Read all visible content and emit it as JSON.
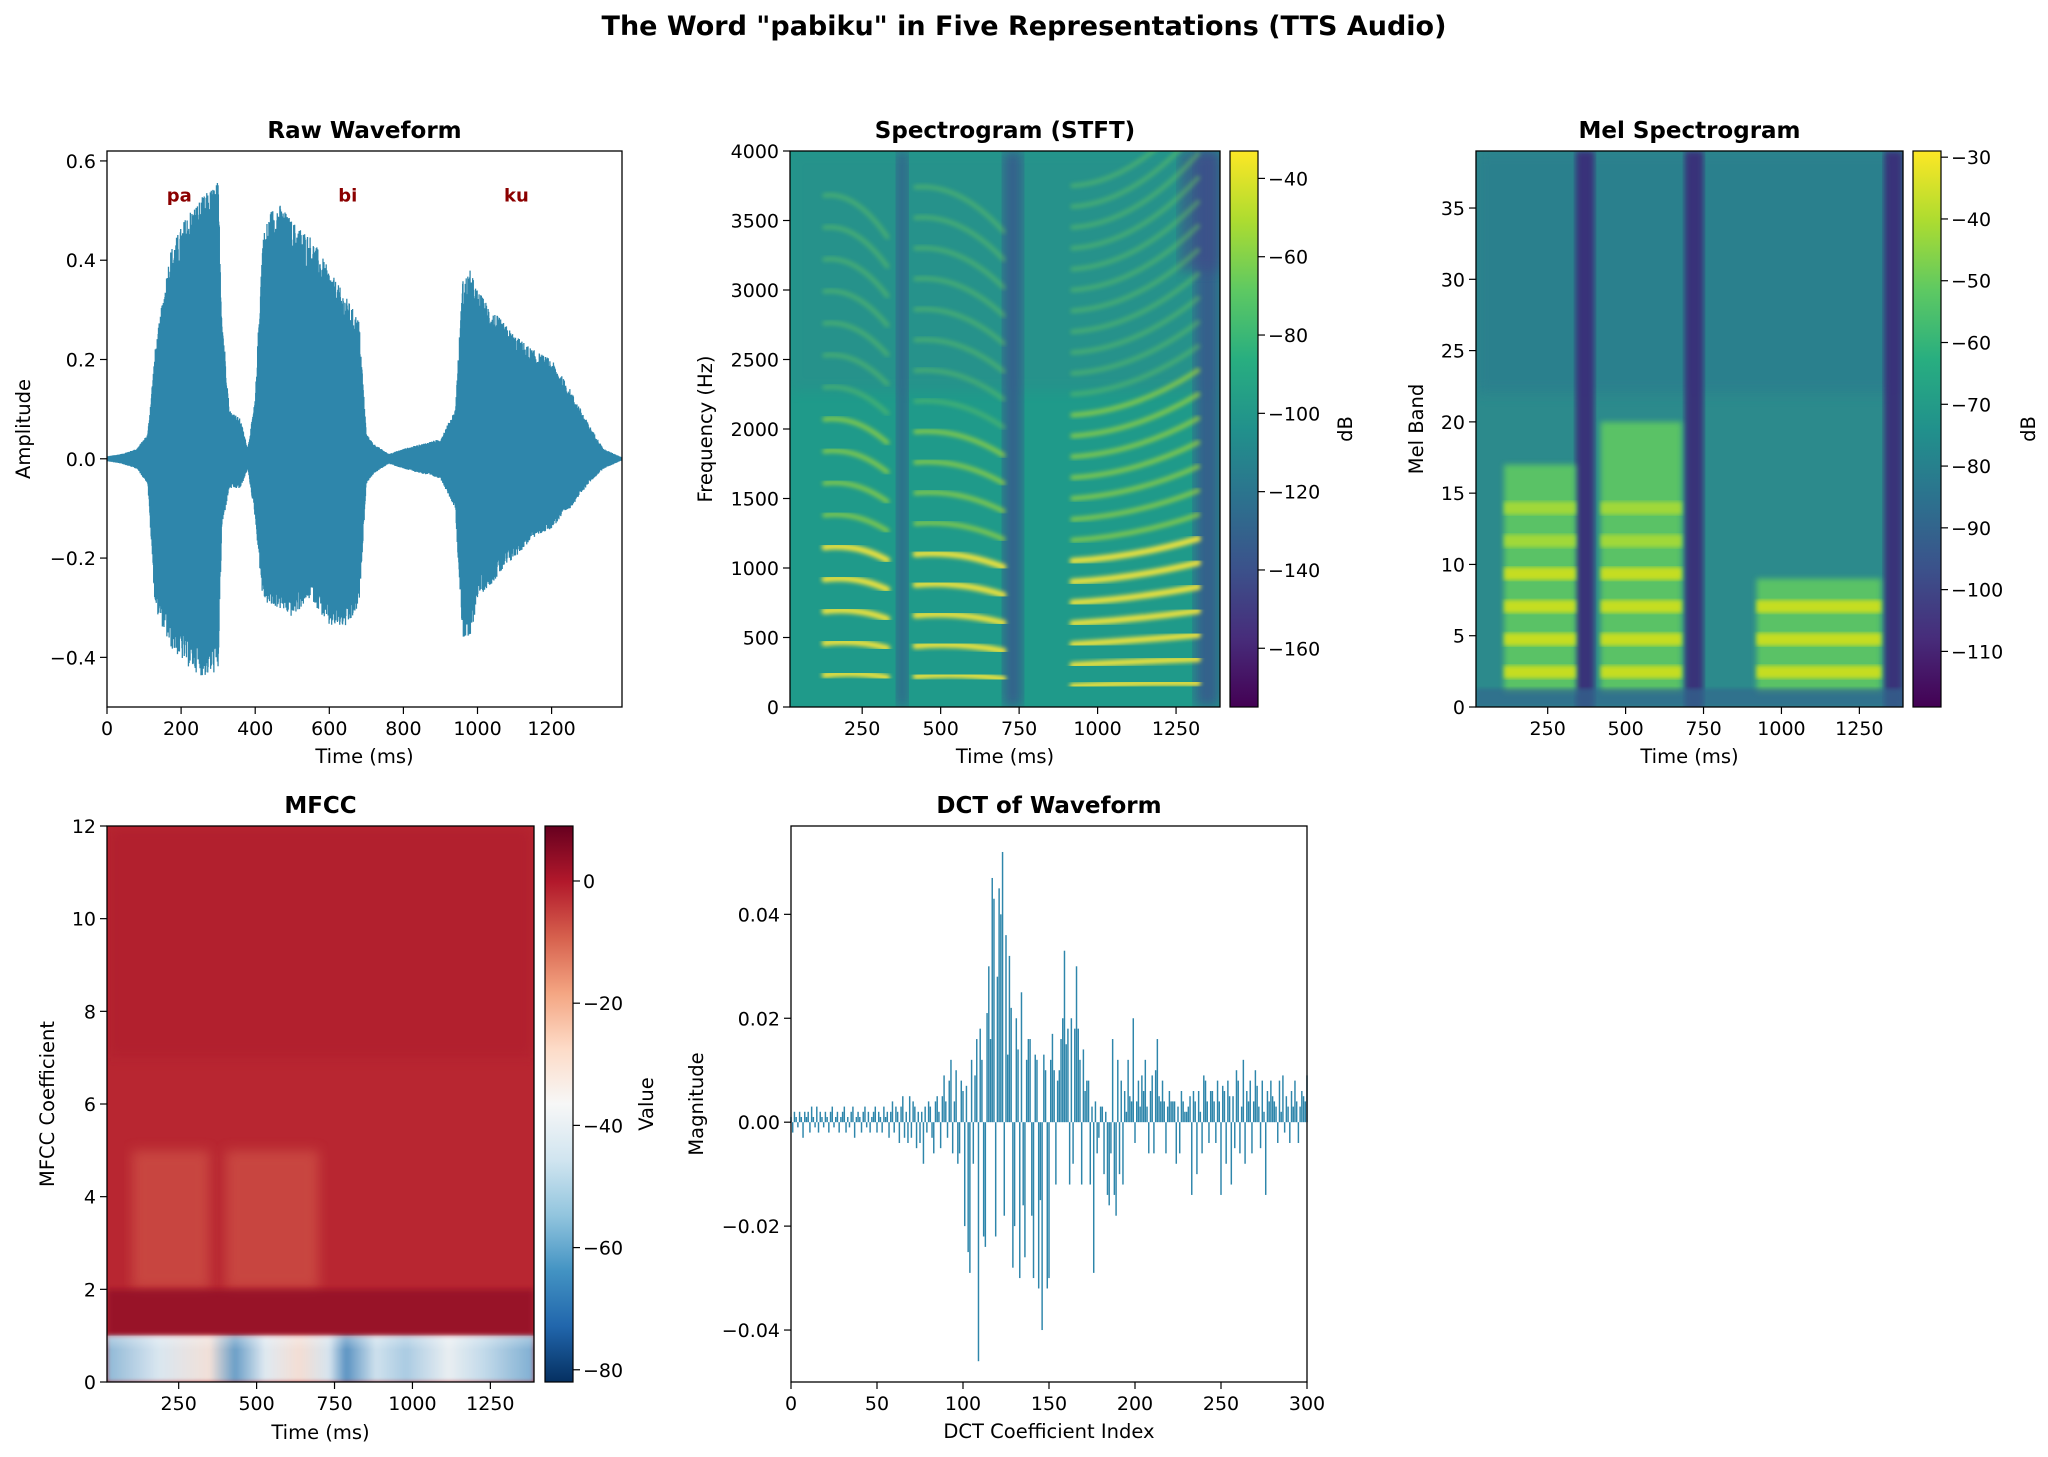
{
  "figure": {
    "title": "The Word \"pabiku\" in Five Representations (TTS Audio)"
  },
  "colors": {
    "waveform": "#2e86ab",
    "syllable_label": "#8b0000",
    "dct_bar": "#2e86ab"
  },
  "chart_data": [
    {
      "id": "waveform",
      "type": "line",
      "title": "Raw Waveform",
      "xlabel": "Time (ms)",
      "ylabel": "Amplitude",
      "xlim": [
        0,
        1390
      ],
      "ylim": [
        -0.5,
        0.62
      ],
      "xticks": [
        0,
        200,
        400,
        600,
        800,
        1000,
        1200
      ],
      "xtick_labels": [
        "0",
        "200",
        "400",
        "600",
        "800",
        "1000",
        "1200"
      ],
      "yticks": [
        -0.4,
        -0.2,
        0.0,
        0.2,
        0.4,
        0.6
      ],
      "ytick_labels": [
        "−0.4",
        "−0.2",
        "0.0",
        "0.2",
        "0.4",
        "0.6"
      ],
      "annotations": [
        {
          "text": "pa",
          "x": 240,
          "y": 0.53
        },
        {
          "text": "bi",
          "x": 695,
          "y": 0.53
        },
        {
          "text": "ku",
          "x": 1150,
          "y": 0.53
        }
      ],
      "envelope": {
        "t": [
          0,
          40,
          80,
          110,
          130,
          170,
          220,
          260,
          300,
          310,
          330,
          360,
          380,
          400,
          420,
          440,
          460,
          500,
          550,
          600,
          650,
          680,
          700,
          720,
          760,
          800,
          850,
          900,
          940,
          960,
          980,
          1000,
          1040,
          1100,
          1150,
          1200,
          1250,
          1300,
          1340,
          1390
        ],
        "upper": [
          0.005,
          0.01,
          0.02,
          0.05,
          0.22,
          0.42,
          0.5,
          0.53,
          0.56,
          0.3,
          0.1,
          0.08,
          0.02,
          0.12,
          0.45,
          0.5,
          0.52,
          0.48,
          0.45,
          0.38,
          0.32,
          0.28,
          0.05,
          0.03,
          0.01,
          0.02,
          0.03,
          0.04,
          0.1,
          0.36,
          0.38,
          0.34,
          0.3,
          0.25,
          0.22,
          0.2,
          0.14,
          0.07,
          0.02,
          0.003
        ],
        "lower": [
          -0.005,
          -0.01,
          -0.02,
          -0.05,
          -0.3,
          -0.38,
          -0.42,
          -0.44,
          -0.43,
          -0.14,
          -0.06,
          -0.06,
          -0.02,
          -0.12,
          -0.28,
          -0.3,
          -0.3,
          -0.32,
          -0.28,
          -0.34,
          -0.34,
          -0.3,
          -0.05,
          -0.03,
          -0.01,
          -0.02,
          -0.03,
          -0.04,
          -0.1,
          -0.36,
          -0.37,
          -0.28,
          -0.25,
          -0.2,
          -0.16,
          -0.14,
          -0.1,
          -0.05,
          -0.02,
          -0.003
        ]
      }
    },
    {
      "id": "stft",
      "type": "heatmap",
      "title": "Spectrogram (STFT)",
      "xlabel": "Time (ms)",
      "ylabel": "Frequency (Hz)",
      "xlim": [
        20,
        1390
      ],
      "ylim": [
        0,
        4000
      ],
      "xticks": [
        250,
        500,
        750,
        1000,
        1250
      ],
      "xtick_labels": [
        "250",
        "500",
        "750",
        "1000",
        "1250"
      ],
      "yticks": [
        0,
        500,
        1000,
        1500,
        2000,
        2500,
        3000,
        3500,
        4000
      ],
      "ytick_labels": [
        "0",
        "500",
        "1000",
        "1500",
        "2000",
        "2500",
        "3000",
        "3500",
        "4000"
      ],
      "colormap": "viridis",
      "colorbar": {
        "label": "dB",
        "range": [
          -175,
          -33
        ],
        "ticks": [
          -40,
          -60,
          -80,
          -100,
          -120,
          -140,
          -160
        ],
        "tick_labels": [
          "−40",
          "−60",
          "−80",
          "−100",
          "−120",
          "−140",
          "−160"
        ]
      },
      "segments": [
        {
          "syllable": "pa",
          "t_start": 130,
          "t_end": 330,
          "f0_hz": 230
        },
        {
          "syllable": "bi",
          "t_start": 420,
          "t_end": 700,
          "f0_hz": 220
        },
        {
          "syllable": "ku",
          "t_start": 920,
          "t_end": 1320,
          "f0_hz": 150
        }
      ]
    },
    {
      "id": "mel",
      "type": "heatmap",
      "title": "Mel Spectrogram",
      "xlabel": "Time (ms)",
      "ylabel": "Mel Band",
      "xlim": [
        20,
        1390
      ],
      "ylim": [
        0,
        39
      ],
      "xticks": [
        250,
        500,
        750,
        1000,
        1250
      ],
      "xtick_labels": [
        "250",
        "500",
        "750",
        "1000",
        "1250"
      ],
      "yticks": [
        0,
        5,
        10,
        15,
        20,
        25,
        30,
        35
      ],
      "ytick_labels": [
        "0",
        "5",
        "10",
        "15",
        "20",
        "25",
        "30",
        "35"
      ],
      "colormap": "viridis",
      "colorbar": {
        "label": "dB",
        "range": [
          -119,
          -29
        ],
        "ticks": [
          -30,
          -40,
          -50,
          -60,
          -70,
          -80,
          -90,
          -100,
          -110
        ],
        "tick_labels": [
          "−30",
          "−40",
          "−50",
          "−60",
          "−70",
          "−80",
          "−90",
          "−100",
          "−110"
        ]
      }
    },
    {
      "id": "mfcc",
      "type": "heatmap",
      "title": "MFCC",
      "xlabel": "Time (ms)",
      "ylabel": "MFCC Coefficient",
      "xlim": [
        20,
        1390
      ],
      "ylim": [
        0,
        12
      ],
      "xticks": [
        250,
        500,
        750,
        1000,
        1250
      ],
      "xtick_labels": [
        "250",
        "500",
        "750",
        "1000",
        "1250"
      ],
      "yticks": [
        0,
        2,
        4,
        6,
        8,
        10,
        12
      ],
      "ytick_labels": [
        "0",
        "2",
        "4",
        "6",
        "8",
        "10",
        "12"
      ],
      "colormap": "RdBu_r",
      "colorbar": {
        "label": "Value",
        "range": [
          -82,
          9
        ],
        "ticks": [
          0,
          -20,
          -40,
          -60,
          -80
        ],
        "tick_labels": [
          "0",
          "−20",
          "−40",
          "−60",
          "−80"
        ]
      }
    },
    {
      "id": "dct",
      "type": "bar",
      "title": "DCT of Waveform",
      "xlabel": "DCT Coefficient Index",
      "ylabel": "Magnitude",
      "xlim": [
        0,
        300
      ],
      "ylim": [
        -0.05,
        0.057
      ],
      "xticks": [
        0,
        50,
        100,
        150,
        200,
        250,
        300
      ],
      "xtick_labels": [
        "0",
        "50",
        "100",
        "150",
        "200",
        "250",
        "300"
      ],
      "yticks": [
        -0.04,
        -0.02,
        0.0,
        0.02,
        0.04
      ],
      "ytick_labels": [
        "−0.04",
        "−0.02",
        "0.00",
        "0.02",
        "0.04"
      ],
      "values": [
        0.001,
        -0.002,
        0.002,
        0.001,
        -0.001,
        0.002,
        0.001,
        -0.003,
        0.002,
        0.001,
        0.002,
        -0.002,
        0.003,
        0.001,
        -0.001,
        0.003,
        -0.002,
        0.002,
        0.001,
        -0.001,
        0.002,
        0.001,
        -0.002,
        0.002,
        0.003,
        -0.001,
        0.001,
        0.002,
        -0.002,
        0.001,
        0.002,
        0.003,
        -0.002,
        0.001,
        -0.001,
        0.002,
        0.003,
        -0.003,
        0.001,
        0.002,
        0.001,
        -0.002,
        0.002,
        0.003,
        -0.001,
        0.002,
        -0.002,
        0.001,
        0.002,
        0.003,
        -0.002,
        0.002,
        0.001,
        -0.002,
        0.003,
        0.001,
        0.002,
        -0.003,
        0.002,
        0.004,
        -0.002,
        0.003,
        0.002,
        -0.004,
        0.003,
        0.005,
        -0.003,
        0.002,
        -0.004,
        0.005,
        -0.003,
        0.004,
        0.003,
        -0.005,
        0.002,
        -0.004,
        0.002,
        -0.008,
        0.003,
        -0.002,
        0.004,
        0.003,
        -0.003,
        -0.006,
        0.004,
        0.005,
        0.002,
        -0.005,
        0.005,
        0.009,
        0.004,
        -0.003,
        0.008,
        0.012,
        -0.006,
        0.004,
        0.01,
        -0.008,
        -0.006,
        0.008,
        0.006,
        -0.02,
        0.007,
        -0.025,
        -0.029,
        0.012,
        -0.008,
        0.009,
        0.016,
        -0.046,
        0.018,
        0.012,
        -0.022,
        -0.024,
        0.021,
        0.03,
        0.016,
        0.047,
        0.043,
        -0.022,
        0.028,
        0.045,
        0.04,
        0.052,
        -0.018,
        0.036,
        0.013,
        0.032,
        0.022,
        -0.028,
        -0.02,
        0.02,
        0.014,
        -0.03,
        0.025,
        -0.016,
        -0.026,
        0.012,
        0.016,
        0.016,
        -0.018,
        -0.03,
        0.013,
        0.012,
        -0.032,
        -0.015,
        -0.04,
        0.013,
        0.01,
        -0.032,
        -0.03,
        0.012,
        0.017,
        0.01,
        -0.012,
        0.008,
        0.01,
        0.016,
        0.02,
        0.033,
        0.015,
        0.018,
        -0.012,
        0.02,
        -0.008,
        0.018,
        0.03,
        0.018,
        0.012,
        -0.012,
        0.014,
        0.006,
        0.008,
        0.008,
        -0.012,
        0.003,
        -0.029,
        0.004,
        -0.006,
        -0.003,
        0.003,
        0.003,
        -0.01,
        0.002,
        -0.014,
        -0.016,
        -0.006,
        0.016,
        -0.014,
        -0.018,
        0.012,
        -0.01,
        0.008,
        -0.012,
        0.006,
        0.002,
        0.012,
        0.005,
        0.004,
        0.02,
        -0.004,
        0.004,
        0.008,
        0.003,
        0.009,
        0.006,
        0.012,
        0.003,
        -0.006,
        0.006,
        0.009,
        -0.006,
        0.01,
        0.016,
        0.005,
        0.004,
        0.008,
        0.004,
        -0.006,
        0.003,
        0.006,
        0.004,
        0.004,
        0.004,
        -0.008,
        0.003,
        -0.006,
        0.006,
        0.004,
        0.002,
        0.002,
        0.003,
        0.005,
        -0.014,
        0.006,
        0.004,
        -0.01,
        0.006,
        0.002,
        -0.006,
        0.009,
        0.008,
        0.004,
        -0.004,
        0.006,
        0.006,
        0.004,
        -0.004,
        0.008,
        0.004,
        -0.014,
        0.007,
        0.006,
        -0.008,
        0.008,
        0.005,
        -0.012,
        0.005,
        -0.005,
        0.01,
        0.008,
        -0.006,
        0.003,
        0.012,
        -0.008,
        0.006,
        0.004,
        0.008,
        -0.006,
        0.004,
        0.01,
        0.007,
        0.003,
        -0.005,
        0.008,
        0.002,
        -0.014,
        0.006,
        0.004,
        0.008,
        0.005,
        0.004,
        0.003,
        -0.004,
        0.008,
        0.002,
        0.009,
        -0.002,
        0.005,
        0.003,
        -0.004,
        0.006,
        0.003,
        0.008,
        0.004,
        -0.004,
        0.003,
        0.006,
        0.005,
        0.004,
        0.009
      ]
    }
  ]
}
